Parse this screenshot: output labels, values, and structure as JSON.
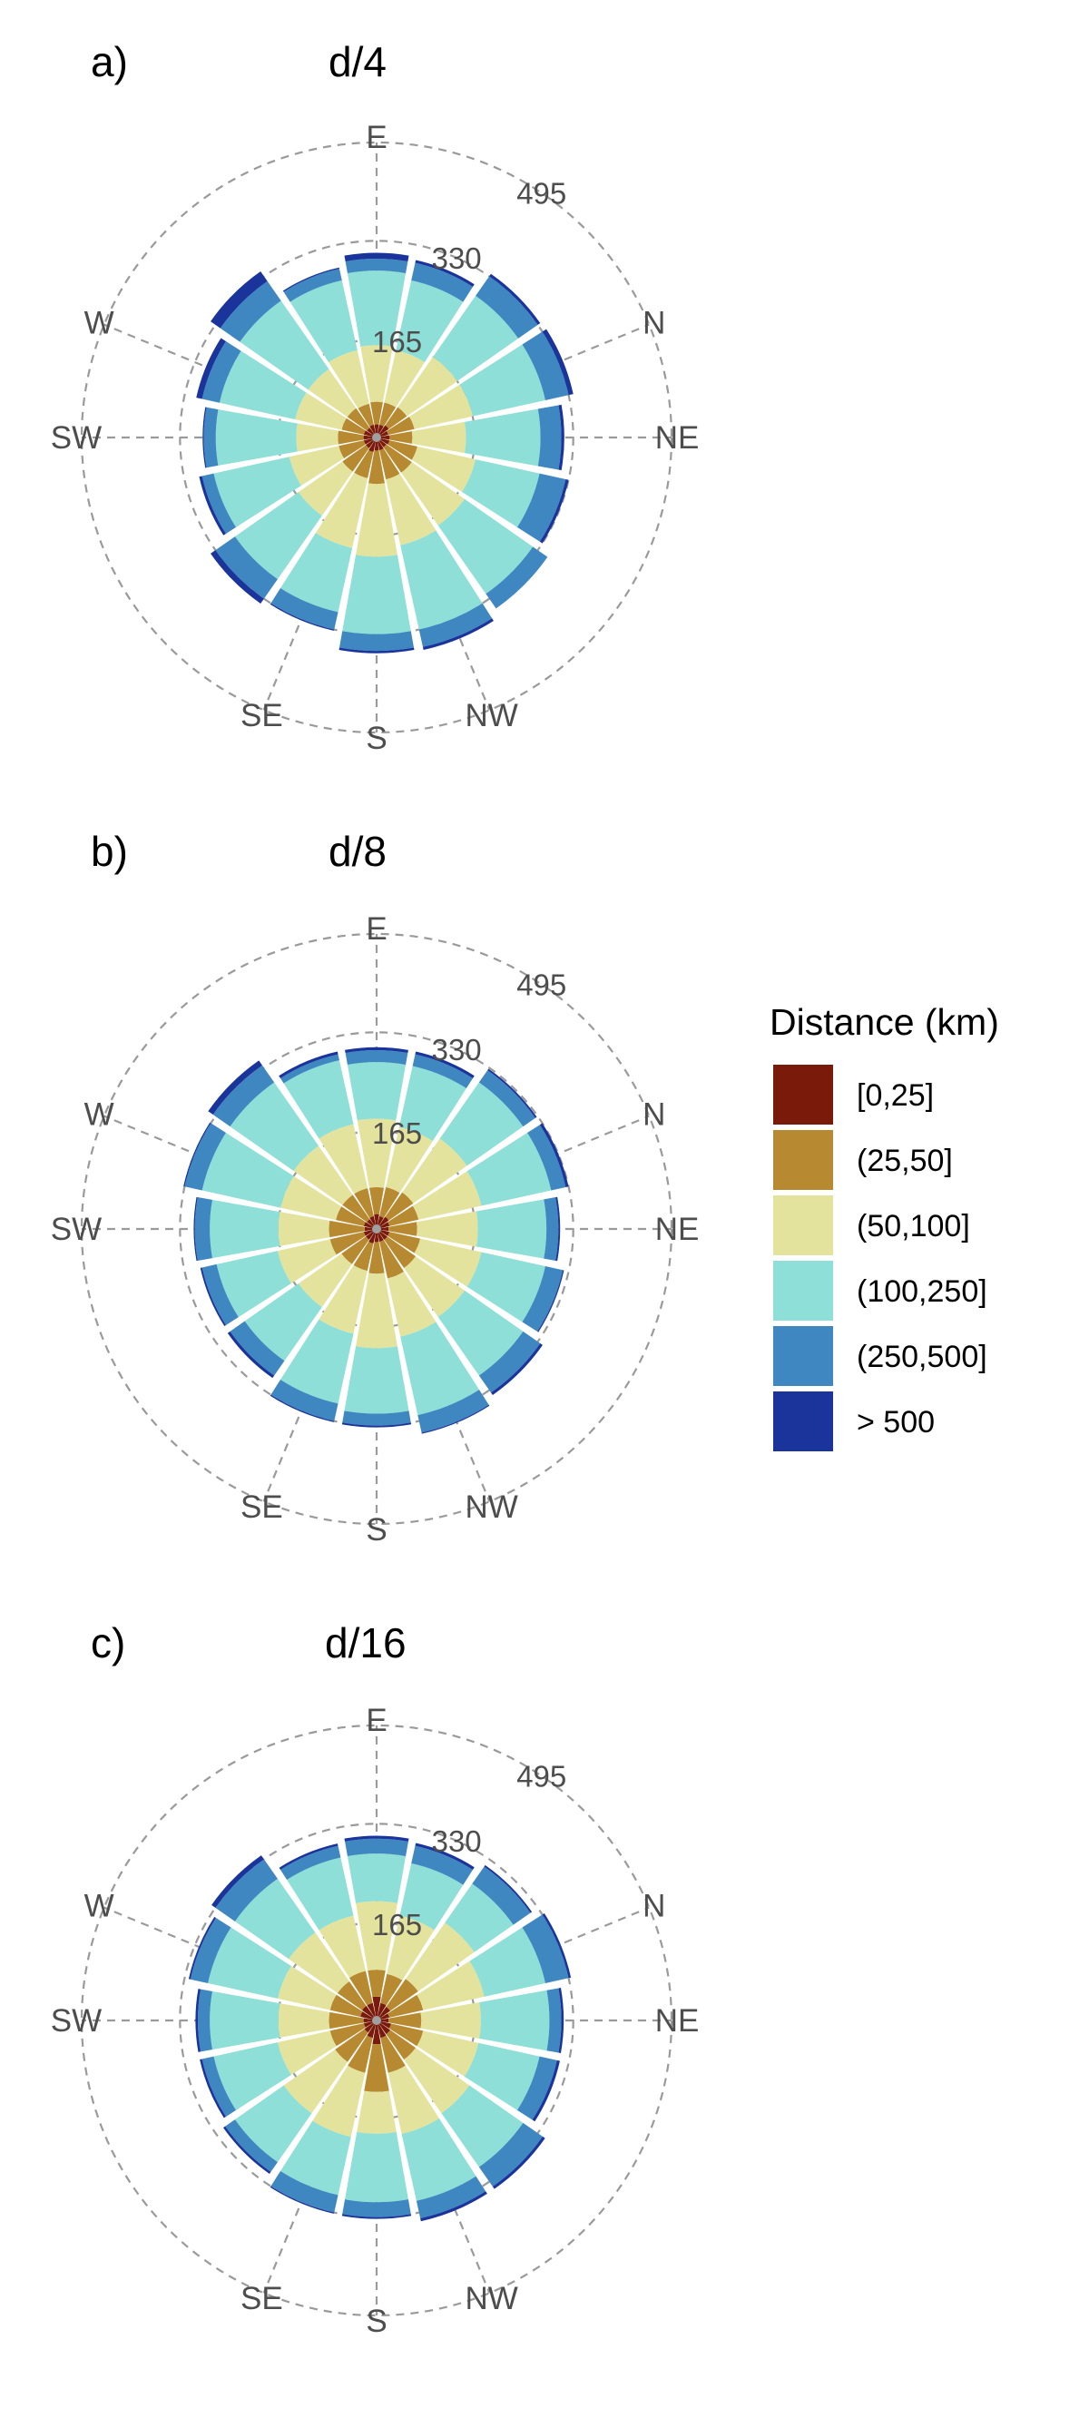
{
  "legend": {
    "title": "Distance (km)",
    "items": [
      {
        "label": "[0,25]",
        "color": "#7a1a0b"
      },
      {
        "label": "(25,50]",
        "color": "#b78a32"
      },
      {
        "label": "(50,100]",
        "color": "#e4e39d"
      },
      {
        "label": "(100,250]",
        "color": "#8edfd7"
      },
      {
        "label": "(250,500]",
        "color": "#3f87c0"
      },
      {
        "label": "> 500",
        "color": "#1a349b"
      }
    ]
  },
  "chart_data": [
    {
      "type": "wind-rose",
      "panel": "a)",
      "title": "d/4",
      "directions": [
        "E",
        "N",
        "NE",
        "NW",
        "S",
        "SE",
        "SW",
        "W"
      ],
      "ring_values": [
        165,
        330,
        495
      ],
      "rmax": 495,
      "stacked_cumulative_bins": [
        [
          22,
          60,
          155,
          280,
          300,
          310
        ],
        [
          22,
          60,
          150,
          270,
          300,
          305
        ],
        [
          25,
          62,
          165,
          290,
          330,
          335
        ],
        [
          20,
          65,
          165,
          290,
          330,
          338
        ],
        [
          22,
          60,
          150,
          275,
          310,
          315
        ],
        [
          22,
          70,
          170,
          280,
          325,
          330
        ],
        [
          20,
          72,
          180,
          320,
          350,
          350
        ],
        [
          22,
          72,
          185,
          330,
          360,
          365
        ],
        [
          22,
          78,
          200,
          330,
          358,
          362
        ],
        [
          25,
          70,
          190,
          300,
          330,
          332
        ],
        [
          22,
          70,
          160,
          290,
          330,
          340
        ],
        [
          22,
          65,
          150,
          280,
          300,
          305
        ],
        [
          22,
          65,
          135,
          270,
          290,
          292
        ],
        [
          22,
          60,
          140,
          270,
          300,
          310
        ],
        [
          20,
          60,
          140,
          280,
          320,
          340
        ],
        [
          22,
          58,
          150,
          270,
          290,
          292
        ]
      ]
    },
    {
      "type": "wind-rose",
      "panel": "b)",
      "title": "d/8",
      "directions": [
        "E",
        "N",
        "NE",
        "NW",
        "S",
        "SE",
        "SW",
        "W"
      ],
      "ring_values": [
        165,
        330,
        495
      ],
      "rmax": 495,
      "stacked_cumulative_bins": [
        [
          25,
          70,
          185,
          280,
          300,
          305
        ],
        [
          22,
          72,
          175,
          280,
          300,
          305
        ],
        [
          25,
          75,
          185,
          300,
          325,
          328
        ],
        [
          22,
          72,
          180,
          300,
          325,
          330
        ],
        [
          20,
          68,
          170,
          285,
          305,
          308
        ],
        [
          22,
          75,
          180,
          290,
          320,
          322
        ],
        [
          22,
          80,
          180,
          300,
          335,
          340
        ],
        [
          22,
          85,
          185,
          320,
          350,
          352
        ],
        [
          22,
          75,
          200,
          310,
          330,
          333
        ],
        [
          25,
          72,
          180,
          300,
          330,
          332
        ],
        [
          22,
          72,
          160,
          270,
          300,
          305
        ],
        [
          22,
          80,
          170,
          275,
          300,
          303
        ],
        [
          20,
          80,
          165,
          280,
          305,
          307
        ],
        [
          22,
          70,
          165,
          300,
          330,
          332
        ],
        [
          20,
          70,
          170,
          300,
          335,
          345
        ],
        [
          22,
          70,
          180,
          290,
          300,
          305
        ]
      ]
    },
    {
      "type": "wind-rose",
      "panel": "c)",
      "title": "d/16",
      "directions": [
        "E",
        "N",
        "NE",
        "NW",
        "S",
        "SE",
        "SW",
        "W"
      ],
      "ring_values": [
        165,
        330,
        495
      ],
      "rmax": 495,
      "stacked_cumulative_bins": [
        [
          40,
          85,
          200,
          280,
          305,
          310
        ],
        [
          30,
          80,
          180,
          270,
          300,
          305
        ],
        [
          28,
          85,
          200,
          280,
          315,
          318
        ],
        [
          22,
          80,
          185,
          290,
          330,
          334
        ],
        [
          20,
          75,
          175,
          290,
          310,
          314
        ],
        [
          25,
          80,
          175,
          280,
          310,
          315
        ],
        [
          28,
          80,
          190,
          300,
          340,
          345
        ],
        [
          30,
          90,
          195,
          310,
          340,
          345
        ],
        [
          40,
          120,
          190,
          305,
          330,
          333
        ],
        [
          30,
          90,
          200,
          300,
          330,
          332
        ],
        [
          25,
          85,
          190,
          290,
          310,
          314
        ],
        [
          22,
          80,
          170,
          280,
          300,
          304
        ],
        [
          22,
          80,
          165,
          280,
          300,
          304
        ],
        [
          28,
          80,
          170,
          290,
          320,
          323
        ],
        [
          30,
          80,
          180,
          290,
          330,
          338
        ],
        [
          30,
          85,
          180,
          280,
          300,
          304
        ]
      ]
    }
  ]
}
